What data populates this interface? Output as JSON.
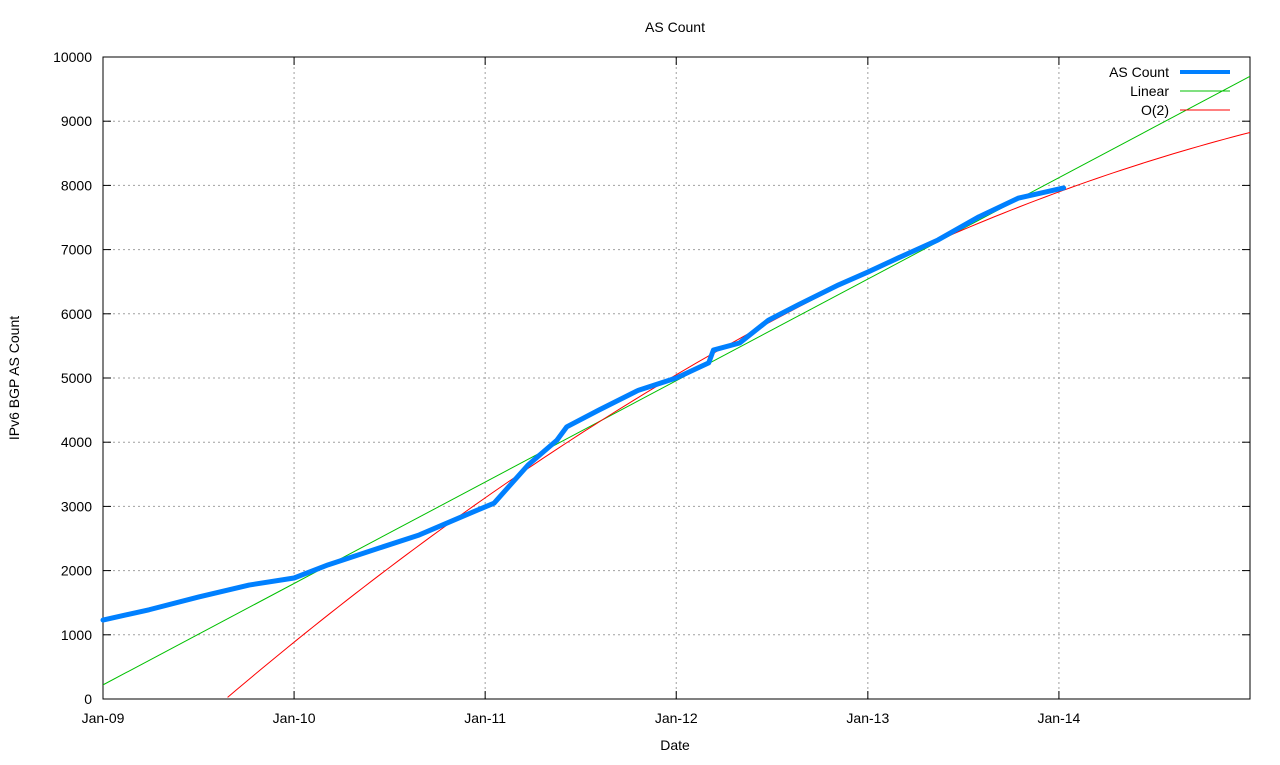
{
  "chart_data": {
    "type": "line",
    "title": "AS Count",
    "xlabel": "Date",
    "ylabel": "IPv6 BGP AS Count",
    "xlim": [
      "2009-01-01",
      "2015-01-01"
    ],
    "ylim": [
      0,
      10000
    ],
    "x_ticks": [
      {
        "date": "2009-01-01",
        "label": "Jan-09"
      },
      {
        "date": "2010-01-01",
        "label": "Jan-10"
      },
      {
        "date": "2011-01-01",
        "label": "Jan-11"
      },
      {
        "date": "2012-01-01",
        "label": "Jan-12"
      },
      {
        "date": "2013-01-01",
        "label": "Jan-13"
      },
      {
        "date": "2014-01-01",
        "label": "Jan-14"
      }
    ],
    "y_ticks": [
      0,
      1000,
      2000,
      3000,
      4000,
      5000,
      6000,
      7000,
      8000,
      9000,
      10000
    ],
    "grid": true,
    "legend_position": "top-right",
    "series": [
      {
        "name": "AS Count",
        "color": "#0080ff",
        "x": [
          "2009-01-01",
          "2009-03-30",
          "2009-07-03",
          "2009-10-07",
          "2010-01-01",
          "2010-03-07",
          "2010-06-12",
          "2010-08-28",
          "2010-11-12",
          "2010-12-18",
          "2011-01-18",
          "2011-03-24",
          "2011-05-18",
          "2011-06-06",
          "2011-08-06",
          "2011-10-21",
          "2012-01-01",
          "2012-03-03",
          "2012-03-12",
          "2012-05-01",
          "2012-06-25",
          "2012-08-21",
          "2012-11-06",
          "2013-01-01",
          "2013-02-28",
          "2013-05-15",
          "2013-08-01",
          "2013-10-15",
          "2014-01-10"
        ],
        "y": [
          1230,
          1390,
          1590,
          1775,
          1885,
          2090,
          2350,
          2555,
          2820,
          2945,
          3050,
          3645,
          4030,
          4240,
          4500,
          4810,
          5000,
          5235,
          5435,
          5545,
          5900,
          6140,
          6450,
          6650,
          6870,
          7150,
          7510,
          7800,
          7960
        ]
      },
      {
        "name": "Linear",
        "color": "#00c000",
        "x": [
          "2009-01-01",
          "2015-01-01"
        ],
        "y": [
          220,
          9700
        ]
      },
      {
        "name": "O(2)",
        "color": "#ff0000",
        "x": [
          "2009-08-27",
          "2010-01-01",
          "2011-01-01",
          "2012-01-01",
          "2013-01-01",
          "2014-01-01",
          "2015-01-01"
        ],
        "y": [
          0,
          920,
          3150,
          5000,
          6640,
          7950,
          8800
        ]
      }
    ]
  }
}
